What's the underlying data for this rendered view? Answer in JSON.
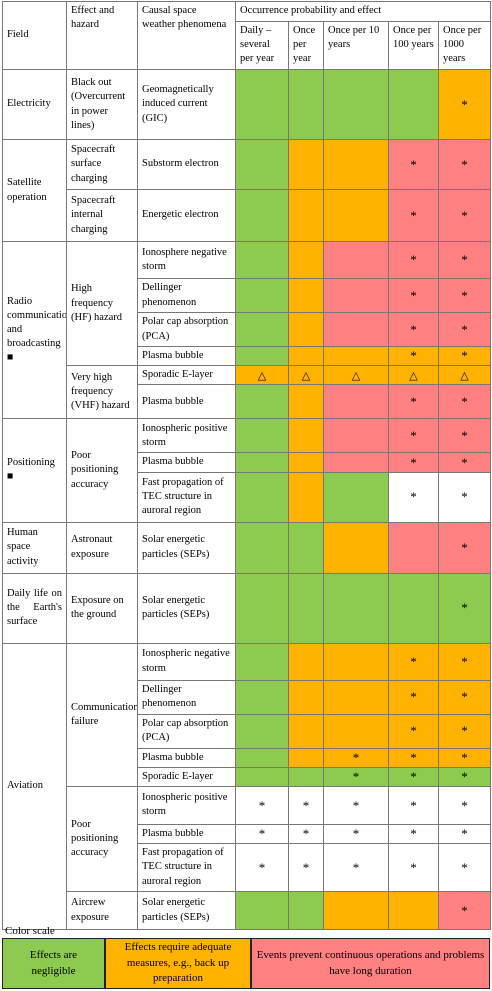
{
  "header": {
    "field": "Field",
    "effect": "Effect and hazard",
    "causal": "Causal space weather phenomena",
    "occurrence": "Occurrence probability and effect",
    "freq": [
      "Daily –several per year",
      "Once per year",
      "Once per 10 years",
      "Once per 100 years",
      "Once per 1000 years"
    ]
  },
  "rows": [
    {
      "field": "Electricity",
      "effect": "Black out (Overcurrent in power lines)",
      "phen": "Geomagnetically induced current (GIC)",
      "cells": [
        "g",
        "g",
        "g",
        "g",
        "o*"
      ]
    },
    {
      "field": "Satellite operation",
      "effect": "Spacecraft surface charging",
      "phen": "Substorm electron",
      "cells": [
        "g",
        "o",
        "o",
        "r*",
        "r*"
      ]
    },
    {
      "effect": "Spacecraft internal charging",
      "phen": "Energetic electron",
      "cells": [
        "g",
        "o",
        "o",
        "r*",
        "r*"
      ]
    },
    {
      "field": "Radio communication and broadcasting ■",
      "effect": "High frequency (HF) hazard",
      "phen": "Ionosphere negative storm",
      "cells": [
        "g",
        "o",
        "r",
        "r*",
        "r*"
      ]
    },
    {
      "phen": "Dellinger phenomenon",
      "cells": [
        "g",
        "o",
        "r",
        "r*",
        "r*"
      ]
    },
    {
      "phen": "Polar cap absorption (PCA)",
      "cells": [
        "g",
        "o",
        "r",
        "r*",
        "r*"
      ]
    },
    {
      "phen": "Plasma bubble",
      "cells": [
        "g",
        "o",
        "o",
        "o*",
        "o*"
      ]
    },
    {
      "effect": "Very high frequency (VHF) hazard",
      "phen": "Sporadic E-layer",
      "cells": [
        "o△",
        "o△",
        "o△",
        "o△",
        "o△"
      ]
    },
    {
      "phen": "Plasma bubble",
      "cells": [
        "g",
        "o",
        "r",
        "r*",
        "r*"
      ]
    },
    {
      "field": "Positioning ■",
      "effect": "Poor positioning accuracy",
      "phen": "Ionospheric positive storm",
      "cells": [
        "g",
        "o",
        "r",
        "r*",
        "r*"
      ]
    },
    {
      "phen": "Plasma bubble",
      "cells": [
        "g",
        "o",
        "r",
        "r*",
        "r*"
      ]
    },
    {
      "phen": "Fast propagation of TEC structure in auroral region",
      "cells": [
        "g",
        "o",
        "g",
        "w*",
        "w*"
      ]
    },
    {
      "field": "Human space activity",
      "effect": "Astronaut exposure",
      "phen": "Solar energetic particles (SEPs)",
      "cells": [
        "g",
        "g",
        "o",
        "r",
        "r*"
      ]
    },
    {
      "field": "Daily life on the Earth's surface",
      "effect": "Exposure on the ground",
      "phen": "Solar energetic particles (SEPs)",
      "cells": [
        "g",
        "g",
        "g",
        "g",
        "g*"
      ]
    },
    {
      "field": "Aviation",
      "effect": "Communication failure",
      "phen": "Ionospheric negative storm",
      "cells": [
        "g",
        "o",
        "o",
        "o*",
        "o*"
      ]
    },
    {
      "phen": "Dellinger phenomenon",
      "cells": [
        "g",
        "o",
        "o",
        "o*",
        "o*"
      ]
    },
    {
      "phen": "Polar cap absorption (PCA)",
      "cells": [
        "g",
        "o",
        "o",
        "o*",
        "o*"
      ]
    },
    {
      "phen": "Plasma bubble",
      "cells": [
        "g",
        "o",
        "o*",
        "o*",
        "o*"
      ]
    },
    {
      "phen": "Sporadic E-layer",
      "cells": [
        "g",
        "g",
        "g*",
        "g*",
        "g*"
      ]
    },
    {
      "effect": "Poor positioning accuracy",
      "phen": "Ionospheric positive storm",
      "cells": [
        "w*",
        "w*",
        "w*",
        "w*",
        "w*"
      ]
    },
    {
      "phen": "Plasma bubble",
      "cells": [
        "w*",
        "w*",
        "w*",
        "w*",
        "w*"
      ]
    },
    {
      "phen": "Fast propagation of TEC structure in auroral region",
      "cells": [
        "w*",
        "w*",
        "w*",
        "w*",
        "w*"
      ]
    },
    {
      "effect": "Aircrew exposure",
      "phen": "Solar energetic particles (SEPs)",
      "cells": [
        "g",
        "g",
        "o",
        "o",
        "r*"
      ]
    }
  ],
  "colors": {
    "green": "#8cca50",
    "orange": "#ffb300",
    "red": "#ff8080",
    "white": "#ffffff"
  },
  "legend": {
    "title": "Color scale",
    "items": [
      {
        "label": "Effects are negligible",
        "color": "#8cca50"
      },
      {
        "label": "Effects require adequate measures, e.g., back up preparation",
        "color": "#ffb300"
      },
      {
        "label": "Events prevent continuous operations and problems have long duration",
        "color": "#ff8080"
      }
    ]
  }
}
